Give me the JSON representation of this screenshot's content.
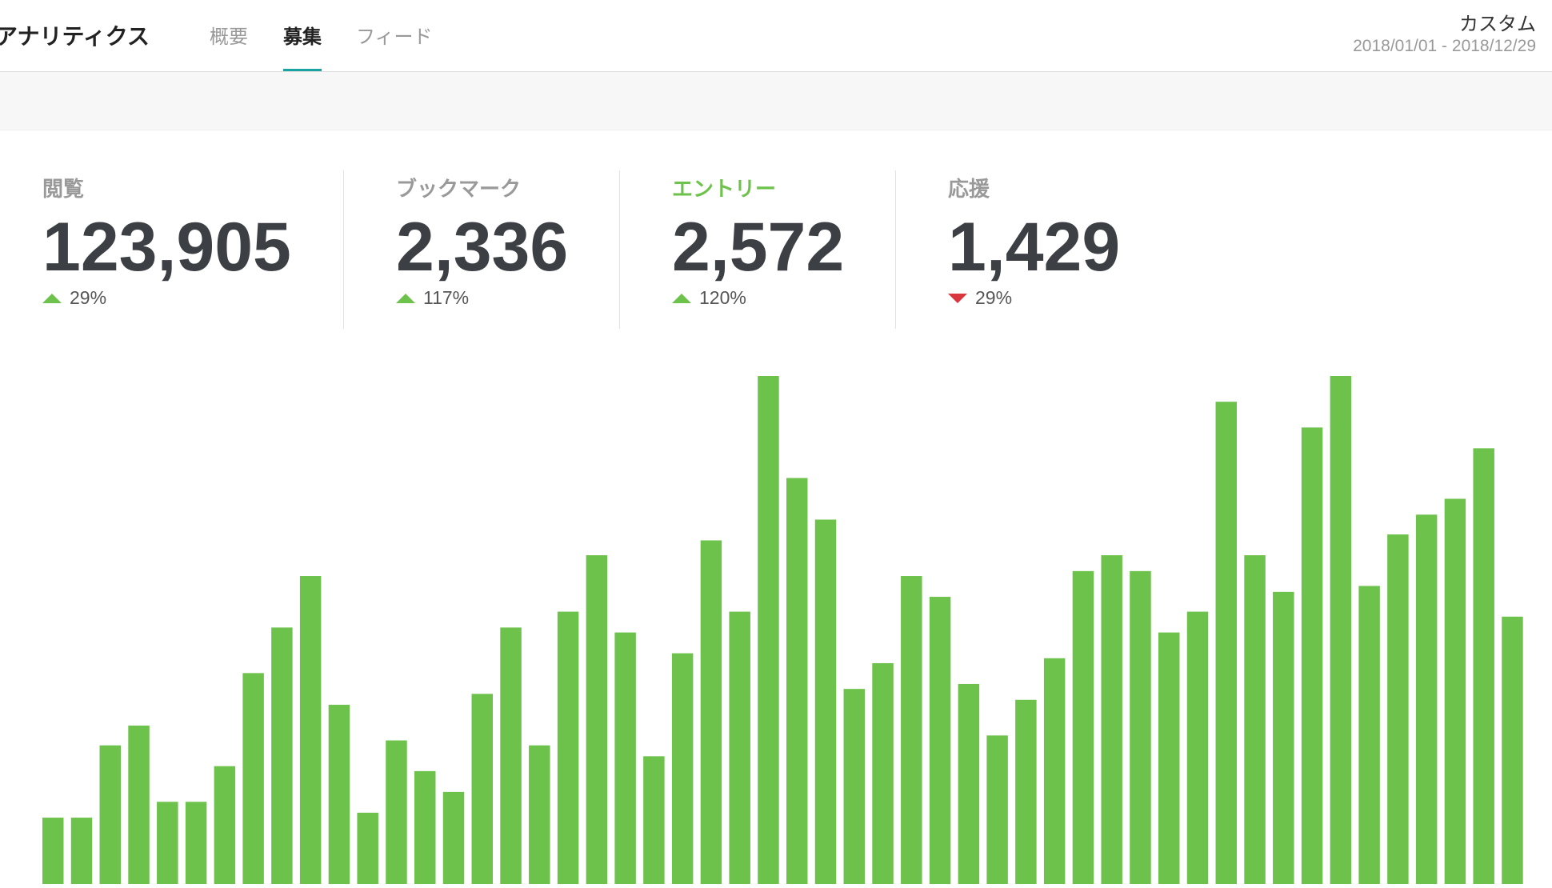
{
  "header": {
    "title": "アナリティクス",
    "tabs": [
      "概要",
      "募集",
      "フィード"
    ],
    "active_tab": 1,
    "range_label": "カスタム",
    "date_range": "2018/01/01 - 2018/12/29"
  },
  "stats": [
    {
      "label": "閲覧",
      "value": "123,905",
      "change": "29%",
      "direction": "up",
      "active": false
    },
    {
      "label": "ブックマーク",
      "value": "2,336",
      "change": "117%",
      "direction": "up",
      "active": false
    },
    {
      "label": "エントリー",
      "value": "2,572",
      "change": "120%",
      "direction": "up",
      "active": true
    },
    {
      "label": "応援",
      "value": "1,429",
      "change": "29%",
      "direction": "down",
      "active": false
    }
  ],
  "chart_data": {
    "type": "bar",
    "color": "#6dc24b",
    "values": [
      67,
      67,
      140,
      160,
      83,
      83,
      119,
      213,
      259,
      311,
      181,
      72,
      145,
      114,
      93,
      192,
      259,
      140,
      275,
      332,
      254,
      129,
      233,
      347,
      275,
      513,
      410,
      368,
      197,
      223,
      311,
      290,
      202,
      150,
      186,
      228,
      316,
      332,
      316,
      254,
      275,
      487,
      332,
      295,
      461,
      513,
      301,
      353,
      373,
      389,
      440,
      270
    ]
  }
}
